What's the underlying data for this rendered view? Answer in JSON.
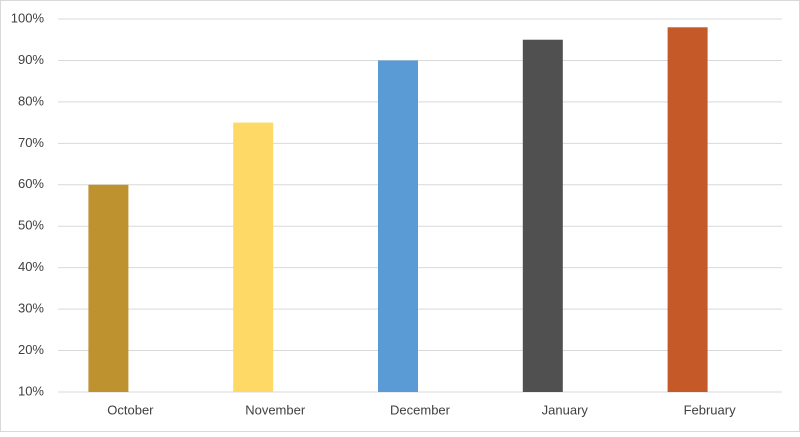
{
  "chart_data": {
    "type": "bar",
    "categories": [
      "October",
      "November",
      "December",
      "January",
      "February"
    ],
    "values": [
      60,
      75,
      90,
      95,
      98
    ],
    "colors": [
      "#bf9230",
      "#ffd966",
      "#5b9bd5",
      "#505050",
      "#c55a28"
    ],
    "ylim": [
      10,
      100
    ],
    "yticks": [
      {
        "value": 10,
        "label": "10%"
      },
      {
        "value": 20,
        "label": "20%"
      },
      {
        "value": 30,
        "label": "30%"
      },
      {
        "value": 40,
        "label": "40%"
      },
      {
        "value": 50,
        "label": "50%"
      },
      {
        "value": 60,
        "label": "60%"
      },
      {
        "value": 70,
        "label": "70%"
      },
      {
        "value": 80,
        "label": "80%"
      },
      {
        "value": 90,
        "label": "90%"
      },
      {
        "value": 100,
        "label": "100%"
      }
    ],
    "grid": true
  }
}
